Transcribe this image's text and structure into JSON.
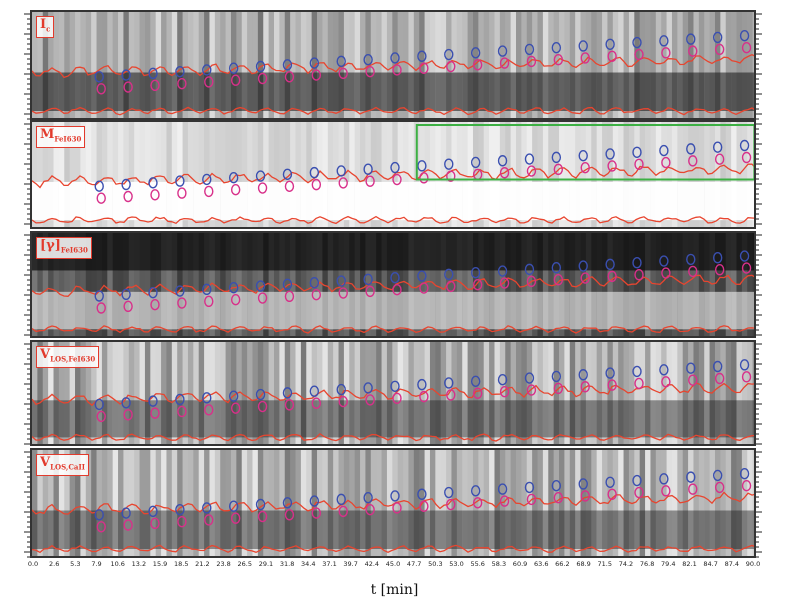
{
  "figure": {
    "x_axis_label": "t [min]",
    "x_ticks": [
      "0.0",
      "2.6",
      "5.3",
      "7.9",
      "10.6",
      "13.2",
      "15.9",
      "18.5",
      "21.2",
      "23.8",
      "26.5",
      "29.1",
      "31.8",
      "34.4",
      "37.1",
      "39.7",
      "42.4",
      "45.0",
      "47.7",
      "50.3",
      "53.0",
      "55.6",
      "58.3",
      "60.9",
      "63.6",
      "66.2",
      "68.9",
      "71.5",
      "74.2",
      "76.8",
      "79.4",
      "82.1",
      "84.7",
      "87.4",
      "90.0"
    ],
    "colors": {
      "contour_red": "#e8452f",
      "marker_blue": "#3a4fb0",
      "marker_pink": "#d8308a",
      "highlight_green": "#3cb043",
      "frame": "#333333"
    },
    "panels": [
      {
        "id": "intensity",
        "label": "I",
        "sub": "c",
        "style": "gray"
      },
      {
        "id": "magnetogram",
        "label": "M",
        "sub": "FeI630",
        "style": "light"
      },
      {
        "id": "inclination",
        "label": "[γ]",
        "sub": "FeI630",
        "style": "dark"
      },
      {
        "id": "velocity-fe",
        "label": "V",
        "sub": "LOS,FeI630",
        "style": "noisy"
      },
      {
        "id": "velocity-ca",
        "label": "V",
        "sub": "LOS,CaII",
        "style": "noisy"
      }
    ]
  }
}
